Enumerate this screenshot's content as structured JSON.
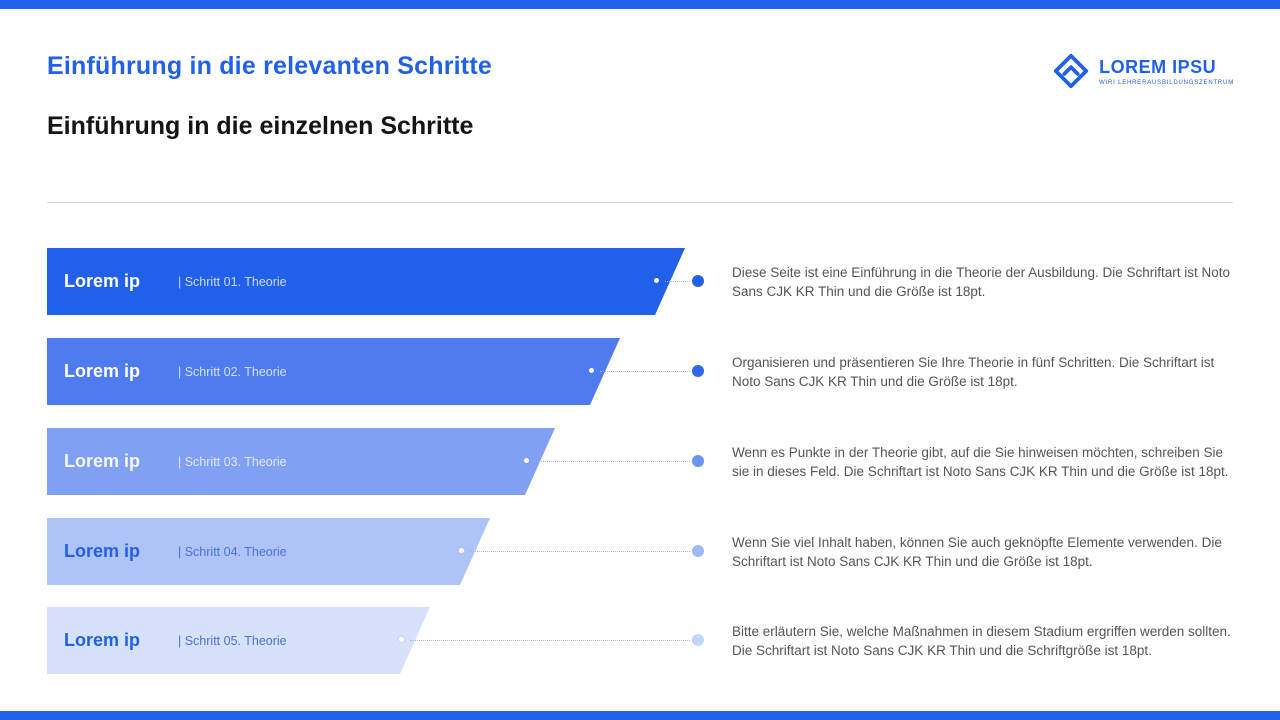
{
  "theme": {
    "accent": "#2160e8",
    "strip_color": "#2160e8",
    "title_color": "#2160e8",
    "subtitle_color": "#141414",
    "description_color": "#555555",
    "connector_color": "#a9b6d6"
  },
  "header": {
    "title": "Einführung in die relevanten Schritte",
    "subtitle": "Einführung in die einzelnen Schritte"
  },
  "logo": {
    "icon": "diamond-logo-icon",
    "name": "LOREM IPSU",
    "tagline": "WIRI LEHRERAUSBILDUNGSZENTRUM",
    "color": "#2160e8"
  },
  "steps": [
    {
      "label": "Lorem ip",
      "tag": "| Schritt 01. Theorie",
      "description": "Diese Seite ist eine Einführung in die Theorie der Ausbildung. Die Schriftart ist Noto Sans CJK KR Thin und die Größe ist 18pt.",
      "bar_color": "#2160e8",
      "label_color": "#ffffff",
      "tag_color": "#ffffffc2",
      "edge_color": "#2160e8",
      "dot_color": "#2160e8"
    },
    {
      "label": "Lorem ip",
      "tag": "| Schritt 02. Theorie",
      "description": "Organisieren und präsentieren Sie Ihre Theorie in fünf Schritten. Die Schriftart ist Noto Sans CJK KR Thin und die Größe ist 18pt.",
      "bar_color": "#4e7bee",
      "label_color": "#ffffff",
      "tag_color": "#ffffffc2",
      "edge_color": "#4e7bee",
      "dot_color": "#2f66ec"
    },
    {
      "label": "Lorem ip",
      "tag": "| Schritt 03. Theorie",
      "description": "Wenn es Punkte in der Theorie gibt, auf die Sie hinweisen möchten, schreiben Sie sie in dieses Feld. Die Schriftart ist Noto Sans CJK KR Thin und die Größe ist 18pt.",
      "bar_color": "#7fa0f3",
      "label_color": "#ffffffe8",
      "tag_color": "#ffffffc2",
      "edge_color": "#7fa0f3",
      "dot_color": "#6b93f2"
    },
    {
      "label": "Lorem ip",
      "tag": "| Schritt 04. Theorie",
      "description": "Wenn Sie viel Inhalt haben, können Sie auch geknöpfte Elemente verwenden. Die Schriftart ist Noto Sans CJK KR Thin und die Größe ist 18pt.",
      "bar_color": "#aec3f8",
      "label_color": "#2160e8",
      "tag_color": "#4a74d8",
      "edge_color": "#aec3f8",
      "dot_color": "#9fb9f6"
    },
    {
      "label": "Lorem ip",
      "tag": "| Schritt 05. Theorie",
      "description": "Bitte erläutern Sie, welche Maßnahmen in diesem Stadium ergriffen werden sollten. Die Schriftart ist Noto Sans CJK KR Thin und die Schriftgröße ist 18pt.",
      "bar_color": "#d6e1fb",
      "label_color": "#2160e8",
      "tag_color": "#4a74d8",
      "edge_color": "#cfdcfa",
      "dot_color": "#c4d4fa"
    }
  ]
}
